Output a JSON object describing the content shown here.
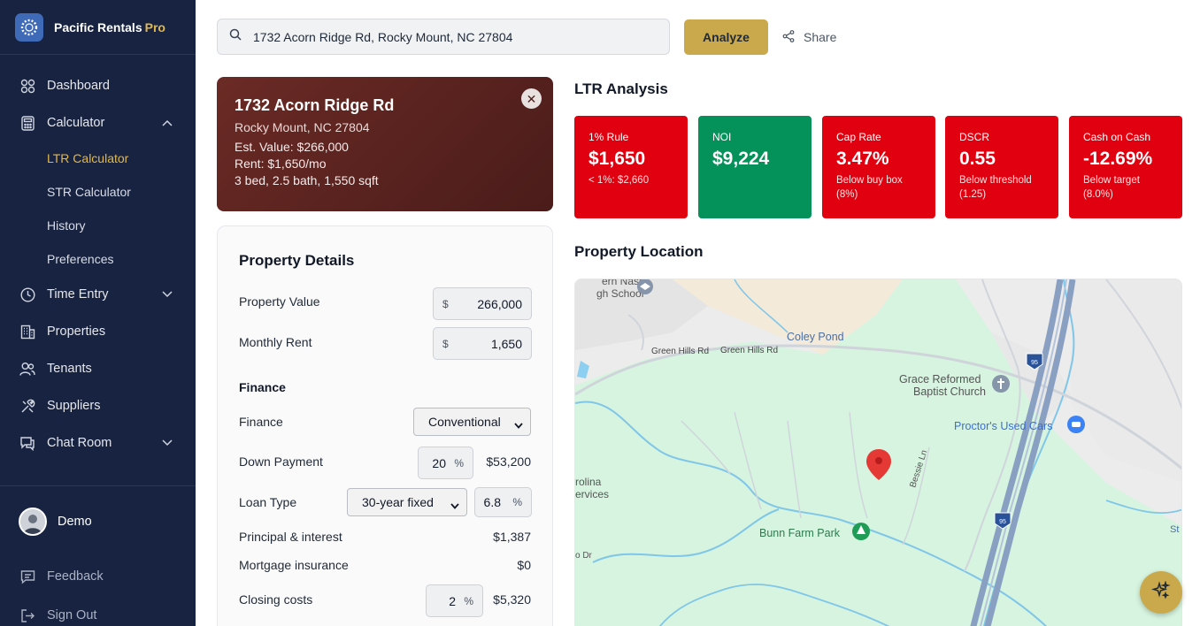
{
  "app": {
    "name": "Pacific Rentals",
    "badge": "Pro"
  },
  "sidebar": {
    "items": [
      {
        "label": "Dashboard",
        "icon": "grid-icon"
      },
      {
        "label": "Calculator",
        "icon": "calculator-icon",
        "expanded": true,
        "children": [
          "LTR Calculator",
          "STR Calculator",
          "History",
          "Preferences"
        ],
        "active_child": "LTR Calculator"
      },
      {
        "label": "Time Entry",
        "icon": "clock-icon",
        "expanded": false
      },
      {
        "label": "Properties",
        "icon": "building-icon"
      },
      {
        "label": "Tenants",
        "icon": "users-icon"
      },
      {
        "label": "Suppliers",
        "icon": "tools-icon"
      },
      {
        "label": "Chat Room",
        "icon": "chat-icon",
        "expanded": false
      }
    ],
    "user": {
      "name": "Demo"
    },
    "footer": {
      "feedback": "Feedback",
      "sign_out": "Sign Out"
    }
  },
  "search": {
    "value": "1732 Acorn Ridge Rd, Rocky Mount, NC 27804"
  },
  "toolbar": {
    "analyze": "Analyze",
    "share": "Share"
  },
  "property": {
    "street": "1732 Acorn Ridge Rd",
    "city": "Rocky Mount, NC 27804",
    "est_value": "Est. Value: $266,000",
    "rent": "Rent: $1,650/mo",
    "specs": "3 bed, 2.5 bath, 1,550 sqft",
    "close": "✕"
  },
  "details": {
    "title": "Property Details",
    "property_value": {
      "label": "Property Value",
      "prefix": "$",
      "value": "266,000"
    },
    "monthly_rent": {
      "label": "Monthly Rent",
      "prefix": "$",
      "value": "1,650"
    },
    "finance_section": "Finance",
    "finance": {
      "label": "Finance",
      "selected": "Conventional"
    },
    "down_payment": {
      "label": "Down Payment",
      "value": "20",
      "suffix": "%",
      "amount": "$53,200"
    },
    "loan_type": {
      "label": "Loan Type",
      "selected": "30-year fixed",
      "rate": "6.8",
      "suffix": "%"
    },
    "principal_interest": {
      "label": "Principal & interest",
      "value": "$1,387"
    },
    "mortgage_insurance": {
      "label": "Mortgage insurance",
      "value": "$0"
    },
    "closing_costs": {
      "label": "Closing costs",
      "value": "2",
      "suffix": "%",
      "amount": "$5,320"
    }
  },
  "analysis": {
    "title": "LTR Analysis",
    "metrics": [
      {
        "label": "1% Rule",
        "value": "$1,650",
        "sub": "< 1%: $2,660",
        "status": "red"
      },
      {
        "label": "NOI",
        "value": "$9,224",
        "sub": "",
        "status": "green"
      },
      {
        "label": "Cap Rate",
        "value": "3.47%",
        "sub": "Below buy box (8%)",
        "status": "red"
      },
      {
        "label": "DSCR",
        "value": "0.55",
        "sub": "Below threshold (1.25)",
        "status": "red"
      },
      {
        "label": "Cash on Cash",
        "value": "-12.69%",
        "sub": "Below target (8.0%)",
        "status": "red"
      }
    ]
  },
  "map": {
    "title": "Property Location",
    "labels": {
      "school": "ern Nash",
      "school2": "gh School",
      "coley_pond": "Coley Pond",
      "green_hills_1": "Green Hills Rd",
      "green_hills_2": "Green Hills Rd",
      "grace_church_1": "Grace Reformed",
      "grace_church_2": "Baptist Church",
      "proctors": "Proctor's Used Cars",
      "bessie": "Bessie Ln",
      "carolina_1": "rolina",
      "carolina_2": "ervices",
      "bunn_farm": "Bunn Farm Park",
      "dr": "o Dr",
      "st": "St",
      "i95_a": "95",
      "i95_b": "95"
    }
  },
  "colors": {
    "sidebar_bg": "#172340",
    "accent_gold": "#c9a94b",
    "red": "#e1000f",
    "green": "#05925a",
    "card_brown": "#5a2320"
  }
}
